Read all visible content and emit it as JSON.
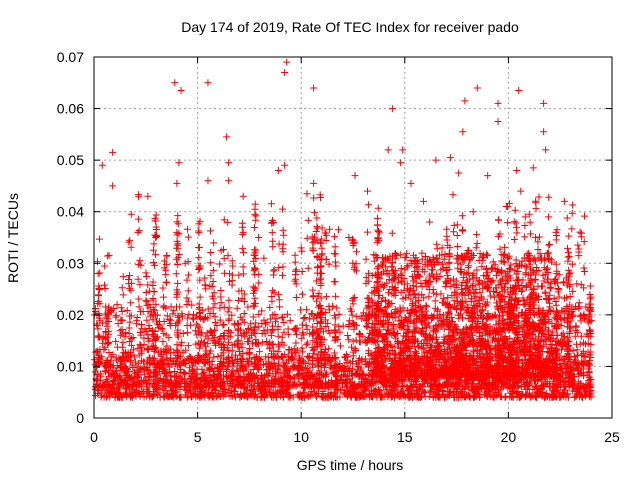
{
  "chart_data": {
    "type": "scatter",
    "title": "Day 174 of 2019, Rate Of TEC Index for receiver pado",
    "xlabel": "GPS time / hours",
    "ylabel": "ROTI / TECUs",
    "xlim": [
      0,
      25
    ],
    "ylim": [
      0,
      0.07
    ],
    "xticks": [
      0,
      5,
      10,
      15,
      20,
      25
    ],
    "yticks": [
      0,
      0.01,
      0.02,
      0.03,
      0.04,
      0.05,
      0.06,
      0.07
    ],
    "xtick_labels": [
      "0",
      "5",
      "10",
      "15",
      "20",
      "25"
    ],
    "ytick_labels": [
      "0",
      "0.01",
      "0.02",
      "0.03",
      "0.04",
      "0.05",
      "0.06",
      "0.07"
    ],
    "grid": true,
    "marker": "+",
    "color": "#ff0000",
    "points": [
      [
        0.4,
        0.049
      ],
      [
        0.9,
        0.045
      ],
      [
        0.9,
        0.0515
      ],
      [
        1.8,
        0.0395
      ],
      [
        3.9,
        0.065
      ],
      [
        4.2,
        0.0635
      ],
      [
        4.1,
        0.0495
      ],
      [
        4.0,
        0.0455
      ],
      [
        5.5,
        0.065
      ],
      [
        5.5,
        0.046
      ],
      [
        6.4,
        0.0545
      ],
      [
        6.5,
        0.0495
      ],
      [
        6.5,
        0.046
      ],
      [
        7.2,
        0.043
      ],
      [
        8.9,
        0.048
      ],
      [
        9.1,
        0.0405
      ],
      [
        9.2,
        0.049
      ],
      [
        9.2,
        0.067
      ],
      [
        9.3,
        0.069
      ],
      [
        10.6,
        0.064
      ],
      [
        10.6,
        0.0455
      ],
      [
        11.8,
        0.0365
      ],
      [
        12.6,
        0.047
      ],
      [
        13.2,
        0.044
      ],
      [
        14.2,
        0.052
      ],
      [
        14.4,
        0.06
      ],
      [
        14.8,
        0.0495
      ],
      [
        14.9,
        0.052
      ],
      [
        15.3,
        0.0455
      ],
      [
        15.9,
        0.042
      ],
      [
        16.2,
        0.038
      ],
      [
        16.5,
        0.05
      ],
      [
        17.2,
        0.0505
      ],
      [
        17.6,
        0.0475
      ],
      [
        17.9,
        0.0615
      ],
      [
        17.8,
        0.0555
      ],
      [
        18.3,
        0.04
      ],
      [
        18.5,
        0.064
      ],
      [
        19.0,
        0.047
      ],
      [
        19.5,
        0.061
      ],
      [
        19.5,
        0.0575
      ],
      [
        19.9,
        0.041
      ],
      [
        20.4,
        0.048
      ],
      [
        20.5,
        0.0635
      ],
      [
        20.6,
        0.044
      ],
      [
        21.2,
        0.0485
      ],
      [
        21.7,
        0.061
      ],
      [
        21.7,
        0.0555
      ],
      [
        21.8,
        0.052
      ],
      [
        22.3,
        0.036
      ],
      [
        22.7,
        0.042
      ],
      [
        23.3,
        0.026
      ],
      [
        0.2,
        0.028
      ],
      [
        2.6,
        0.043
      ],
      [
        3.0,
        0.037
      ],
      [
        4.4,
        0.03
      ],
      [
        8.2,
        0.031
      ],
      [
        10.0,
        0.033
      ],
      [
        12.3,
        0.035
      ],
      [
        16.8,
        0.033
      ],
      [
        18.0,
        0.032
      ],
      [
        19.2,
        0.029
      ],
      [
        21.0,
        0.031
      ],
      [
        23.9,
        0.02
      ]
    ],
    "dense_bands": [
      {
        "x": [
          0,
          24
        ],
        "y": [
          0.004,
          0.012
        ]
      },
      {
        "x": [
          0,
          24
        ],
        "y": [
          0.006,
          0.022
        ]
      },
      {
        "x": [
          13.5,
          22.5
        ],
        "y": [
          0.008,
          0.032
        ]
      }
    ]
  }
}
